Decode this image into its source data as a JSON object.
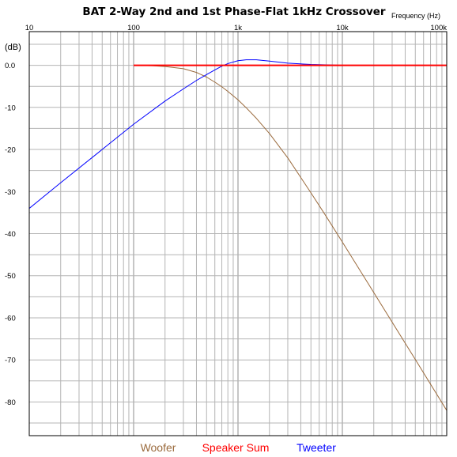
{
  "chart_data": {
    "type": "line",
    "title": "BAT 2-Way 2nd and 1st Phase-Flat 1kHz Crossover",
    "xlabel": "Frequency  (Hz)",
    "ylabel": "(dB)",
    "x_scale": "log",
    "xlim": [
      10,
      100000
    ],
    "ylim": [
      -88,
      8
    ],
    "x_ticks": [
      {
        "value": 10,
        "label": "10"
      },
      {
        "value": 100,
        "label": "100"
      },
      {
        "value": 1000,
        "label": "1k"
      },
      {
        "value": 10000,
        "label": "10k"
      },
      {
        "value": 100000,
        "label": "100k"
      }
    ],
    "y_ticks": [
      {
        "value": 0,
        "label": "0.0"
      },
      {
        "value": -10,
        "label": "-10"
      },
      {
        "value": -20,
        "label": "-20"
      },
      {
        "value": -30,
        "label": "-30"
      },
      {
        "value": -40,
        "label": "-40"
      },
      {
        "value": -50,
        "label": "-50"
      },
      {
        "value": -60,
        "label": "-60"
      },
      {
        "value": -70,
        "label": "-70"
      },
      {
        "value": -80,
        "label": "-80"
      }
    ],
    "grid": true,
    "legend_position": "bottom",
    "series": [
      {
        "name": "Woofer",
        "color": "#9a6a3c",
        "x": [
          100,
          150,
          200,
          300,
          400,
          500,
          600,
          700,
          800,
          1000,
          1200,
          1500,
          2000,
          3000,
          5000,
          7000,
          10000,
          20000,
          50000,
          100000
        ],
        "y": [
          0,
          -0.1,
          -0.3,
          -0.8,
          -1.7,
          -2.8,
          -4.0,
          -5.1,
          -6.2,
          -8.2,
          -10.1,
          -12.6,
          -16.2,
          -22.0,
          -30.3,
          -35.9,
          -42.0,
          -54.0,
          -69.9,
          -82.0
        ]
      },
      {
        "name": "Speaker Sum",
        "color": "#ff0000",
        "x": [
          100,
          100000
        ],
        "y": [
          0,
          0
        ]
      },
      {
        "name": "Tweeter",
        "color": "#0000ff",
        "x": [
          10,
          20,
          50,
          100,
          200,
          300,
          400,
          500,
          600,
          700,
          800,
          1000,
          1200,
          1500,
          2000,
          3000,
          5000,
          7000,
          10000,
          100000
        ],
        "y": [
          -34.0,
          -27.9,
          -20.0,
          -14.0,
          -8.5,
          -5.6,
          -3.6,
          -2.2,
          -1.1,
          -0.2,
          0.4,
          1.1,
          1.3,
          1.3,
          1.0,
          0.5,
          0.2,
          0.1,
          0,
          0
        ]
      }
    ]
  }
}
